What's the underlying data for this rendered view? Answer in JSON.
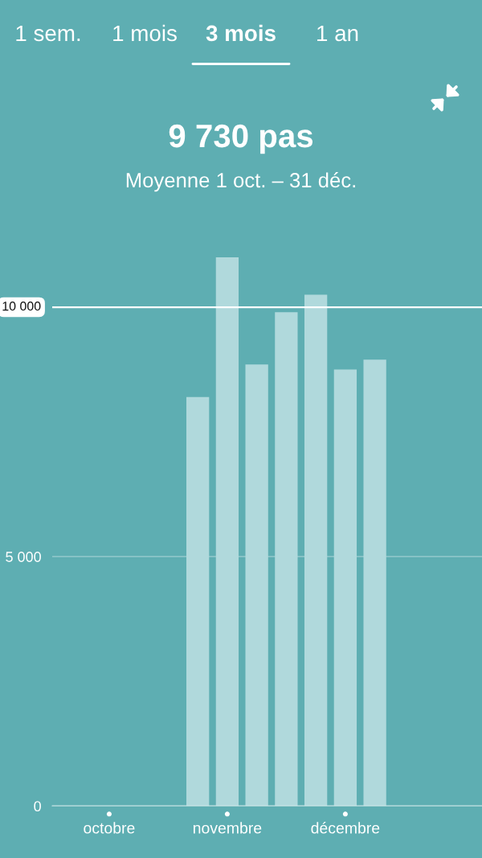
{
  "chart_data": {
    "type": "bar",
    "title": "9 730 pas",
    "subtitle": "Moyenne 1 oct. – 31 déc.",
    "annotations": [
      "1 sem.",
      "1 mois",
      "3 mois",
      "1 an"
    ],
    "categories": [
      "octobre",
      null,
      null,
      null,
      "novembre",
      null,
      null,
      null,
      "décembre",
      null,
      null,
      null,
      null
    ],
    "values": [
      null,
      null,
      null,
      8200,
      11000,
      8850,
      9900,
      10250,
      8750,
      8950,
      null,
      null,
      null
    ],
    "color": "#b0d9dc",
    "ylim": [
      0,
      11000
    ],
    "yticks": [
      0,
      {
        "value": 5000,
        "label": "5 000"
      }
    ],
    "grid": "y",
    "ref_lines": [
      {
        "axis": "y",
        "value": 10000,
        "label": "10 000",
        "color": "#ffffff"
      }
    ]
  }
}
